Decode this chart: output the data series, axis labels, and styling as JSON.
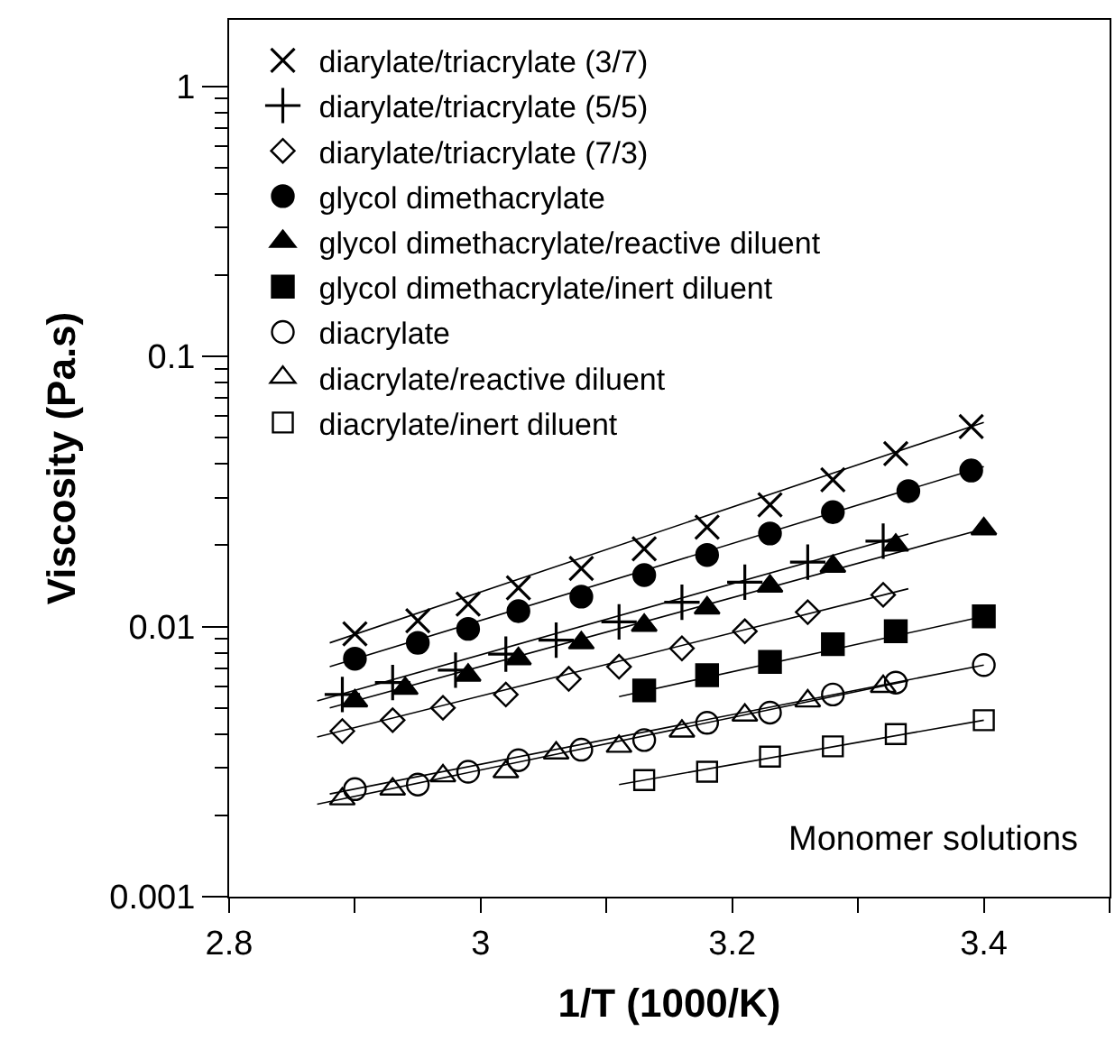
{
  "chart_data": {
    "type": "scatter",
    "xlabel": "1/T (1000/K)",
    "ylabel": "Viscosity (Pa.s)",
    "log": "y",
    "xlim": [
      2.8,
      3.5
    ],
    "ylim": [
      0.001,
      1.76
    ],
    "xticks": [
      2.8,
      {
        "value": 2.9,
        "label": null
      },
      3,
      {
        "value": 3.1,
        "label": null
      },
      3.2,
      {
        "value": 3.3,
        "label": null
      },
      3.4,
      {
        "value": 3.5,
        "label": null
      }
    ],
    "yticks": [
      0.001,
      0.01,
      0.1,
      1
    ],
    "legend": "top left",
    "annotations": [
      "Monomer solutions"
    ],
    "series": [
      {
        "name": "diarylate/triacrylate (3/7)",
        "color": "#000000",
        "marker": "cross",
        "x": [
          2.9,
          2.95,
          2.99,
          3.03,
          3.08,
          3.13,
          3.18,
          3.23,
          3.28,
          3.33,
          3.39
        ],
        "values": [
          0.0094,
          0.0105,
          0.0121,
          0.0139,
          0.0164,
          0.0194,
          0.0233,
          0.0282,
          0.0349,
          0.0436,
          0.055
        ]
      },
      {
        "name": "diarylate/triacrylate (5/5)",
        "color": "#000000",
        "marker": "plus",
        "x": [
          2.89,
          2.93,
          2.98,
          3.02,
          3.06,
          3.11,
          3.16,
          3.21,
          3.26,
          3.32
        ],
        "values": [
          0.0056,
          0.0062,
          0.0069,
          0.0079,
          0.0089,
          0.0104,
          0.0123,
          0.0146,
          0.0173,
          0.0207
        ]
      },
      {
        "name": "diarylate/triacrylate (7/3)",
        "color": "#000000",
        "marker": "diamond-open",
        "x": [
          2.89,
          2.93,
          2.97,
          3.02,
          3.07,
          3.11,
          3.16,
          3.21,
          3.26,
          3.32
        ],
        "values": [
          0.0041,
          0.0045,
          0.005,
          0.0056,
          0.0064,
          0.0071,
          0.0083,
          0.0096,
          0.0113,
          0.0131
        ]
      },
      {
        "name": "glycol dimethacrylate",
        "color": "#000000",
        "marker": "circle",
        "x": [
          2.9,
          2.95,
          2.99,
          3.03,
          3.08,
          3.13,
          3.18,
          3.23,
          3.28,
          3.34,
          3.39
        ],
        "values": [
          0.0076,
          0.0087,
          0.0098,
          0.0114,
          0.0129,
          0.0155,
          0.0184,
          0.0221,
          0.0265,
          0.0317,
          0.0378
        ]
      },
      {
        "name": "glycol dimethacrylate/reactive diluent",
        "color": "#000000",
        "marker": "triangle",
        "x": [
          2.9,
          2.94,
          2.99,
          3.03,
          3.08,
          3.13,
          3.18,
          3.23,
          3.28,
          3.33,
          3.4
        ],
        "values": [
          0.0053,
          0.0059,
          0.0066,
          0.0076,
          0.0087,
          0.0101,
          0.0117,
          0.0141,
          0.0167,
          0.02,
          0.023
        ]
      },
      {
        "name": "glycol dimethacrylate/inert diluent",
        "color": "#000000",
        "marker": "square",
        "x": [
          3.13,
          3.18,
          3.23,
          3.28,
          3.33,
          3.4
        ],
        "values": [
          0.0058,
          0.0066,
          0.0074,
          0.0086,
          0.0096,
          0.0109
        ]
      },
      {
        "name": "diacrylate",
        "color": "#000000",
        "marker": "circle-open",
        "x": [
          2.9,
          2.95,
          2.99,
          3.03,
          3.08,
          3.13,
          3.18,
          3.23,
          3.28,
          3.33,
          3.4
        ],
        "values": [
          0.0025,
          0.0026,
          0.0029,
          0.0032,
          0.0035,
          0.0038,
          0.0044,
          0.0048,
          0.0056,
          0.0062,
          0.0072
        ]
      },
      {
        "name": "diacrylate/reactive diluent",
        "color": "#000000",
        "marker": "triangle-open",
        "x": [
          2.89,
          2.93,
          2.97,
          3.02,
          3.06,
          3.11,
          3.16,
          3.21,
          3.26,
          3.32
        ],
        "values": [
          0.0023,
          0.0025,
          0.0028,
          0.0029,
          0.0034,
          0.0036,
          0.0041,
          0.0047,
          0.0053,
          0.006
        ]
      },
      {
        "name": "diacrylate/inert diluent",
        "color": "#000000",
        "marker": "square-open",
        "x": [
          3.13,
          3.18,
          3.23,
          3.28,
          3.33,
          3.4
        ],
        "values": [
          0.0027,
          0.0029,
          0.0033,
          0.0036,
          0.004,
          0.0045
        ]
      },
      {
        "type": "line",
        "color": "#000000",
        "marker": "none",
        "line_style": "solid",
        "x": [
          2.88,
          3.4
        ],
        "values": [
          0.0087,
          0.057
        ]
      },
      {
        "type": "line",
        "color": "#000000",
        "marker": "none",
        "line_style": "solid",
        "x": [
          2.87,
          3.34
        ],
        "values": [
          0.0053,
          0.022
        ]
      },
      {
        "type": "line",
        "color": "#000000",
        "marker": "none",
        "line_style": "solid",
        "x": [
          2.87,
          3.34
        ],
        "values": [
          0.0039,
          0.0138
        ]
      },
      {
        "type": "line",
        "color": "#000000",
        "marker": "none",
        "line_style": "solid",
        "x": [
          2.88,
          3.4
        ],
        "values": [
          0.0071,
          0.0391
        ]
      },
      {
        "type": "line",
        "color": "#000000",
        "marker": "none",
        "line_style": "solid",
        "x": [
          2.88,
          3.4
        ],
        "values": [
          0.005,
          0.023
        ]
      },
      {
        "type": "line",
        "color": "#000000",
        "marker": "none",
        "line_style": "solid",
        "x": [
          3.11,
          3.4
        ],
        "values": [
          0.0055,
          0.0109
        ]
      },
      {
        "type": "line",
        "color": "#000000",
        "marker": "none",
        "line_style": "solid",
        "x": [
          2.88,
          3.4
        ],
        "values": [
          0.0024,
          0.0072
        ]
      },
      {
        "type": "line",
        "color": "#000000",
        "marker": "none",
        "line_style": "solid",
        "x": [
          2.87,
          3.34
        ],
        "values": [
          0.0022,
          0.0063
        ]
      },
      {
        "type": "line",
        "color": "#000000",
        "marker": "none",
        "line_style": "solid",
        "x": [
          3.11,
          3.4
        ],
        "values": [
          0.0026,
          0.0045
        ]
      }
    ]
  }
}
